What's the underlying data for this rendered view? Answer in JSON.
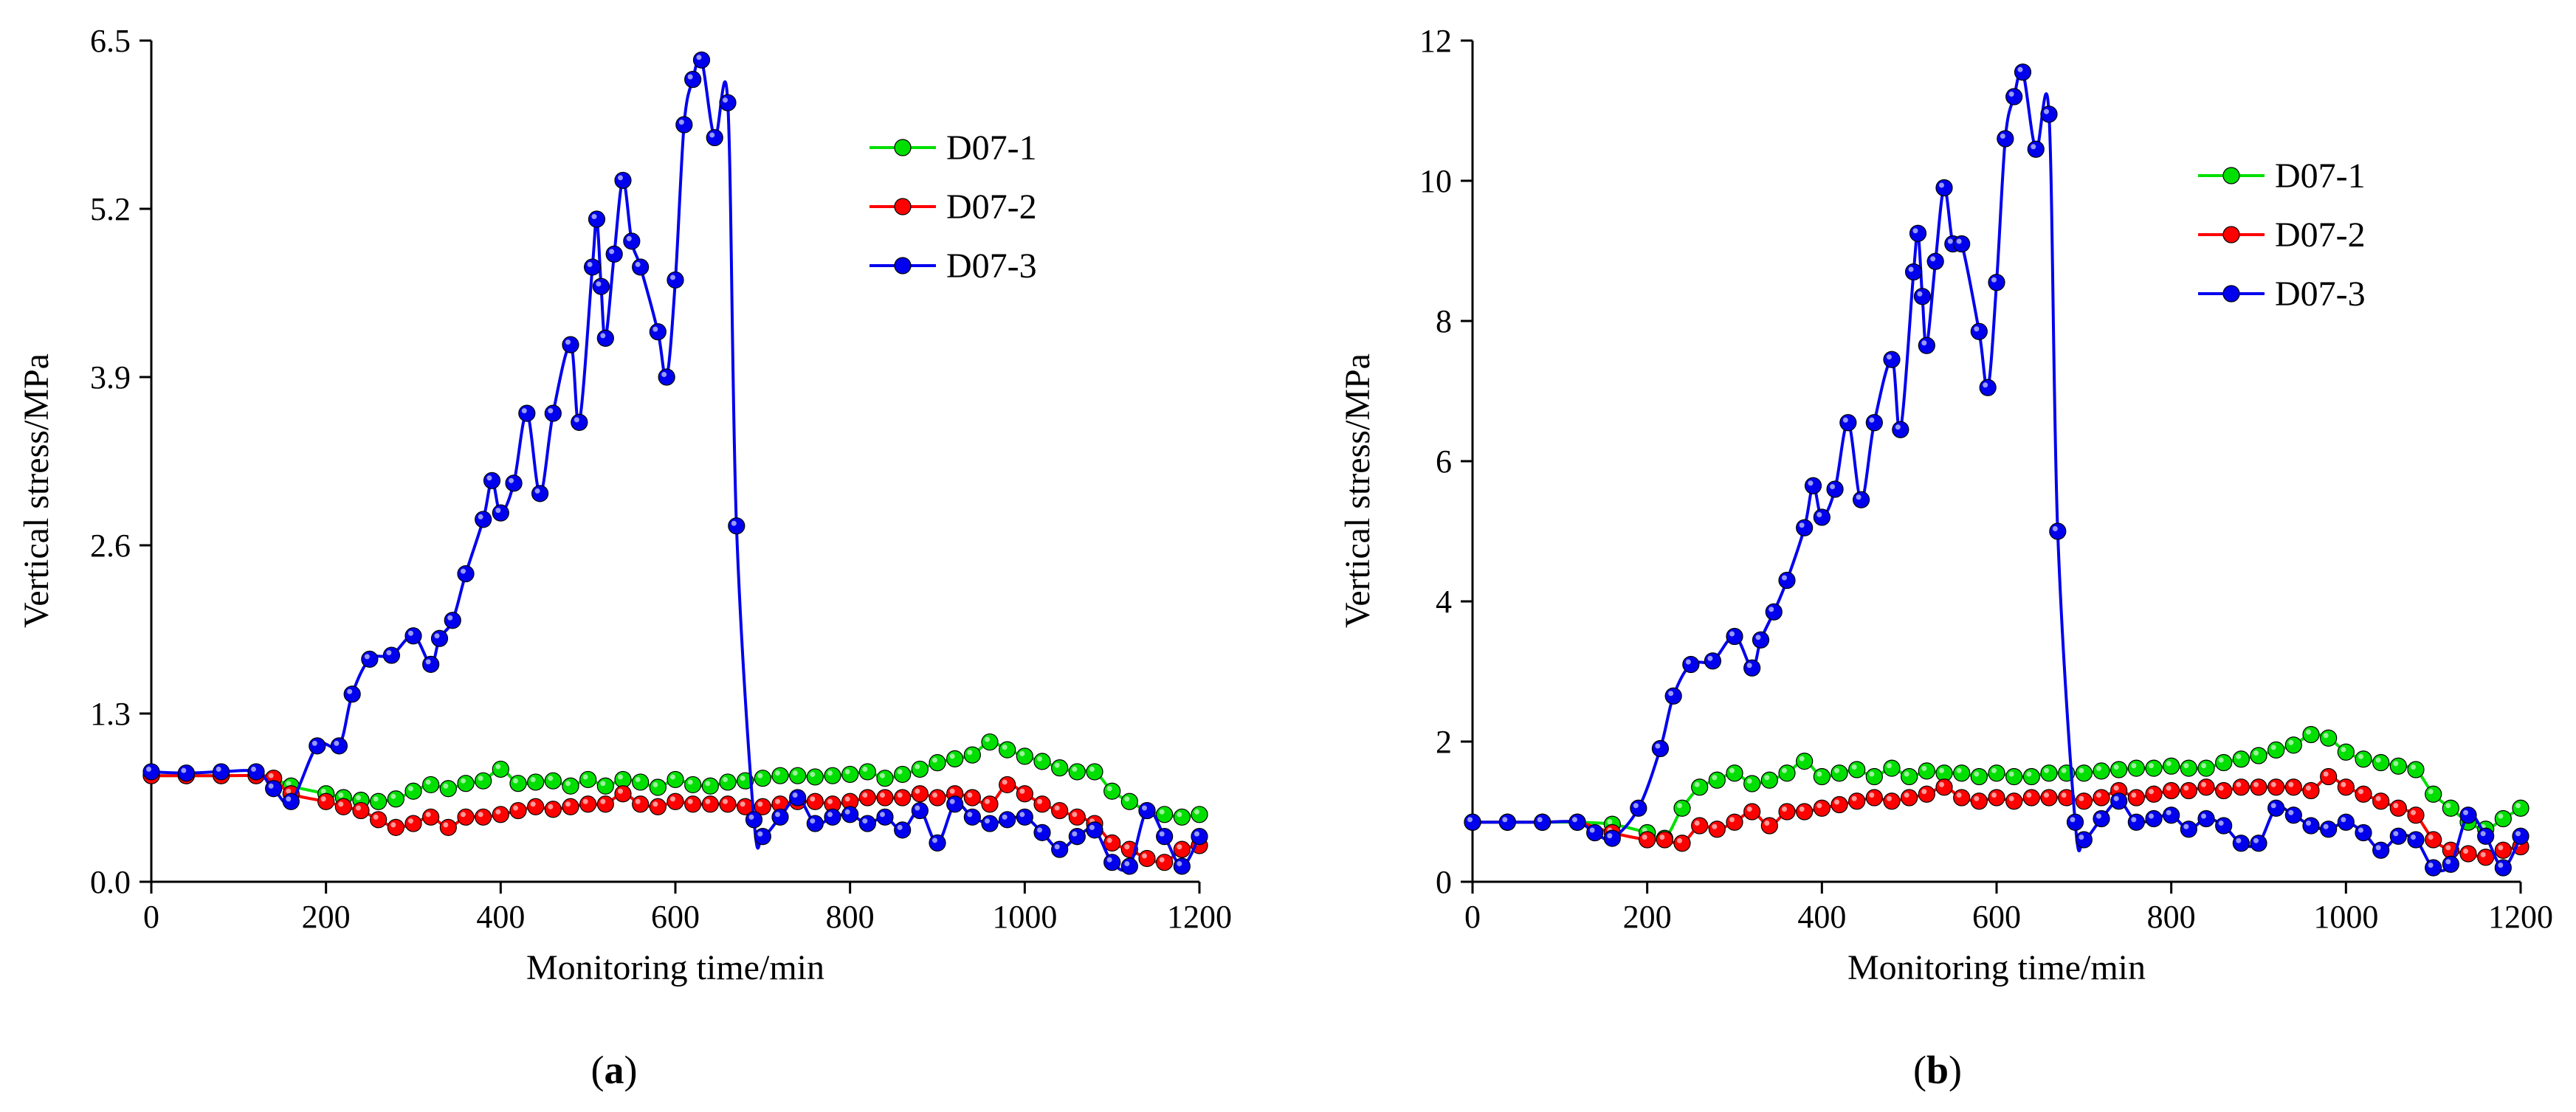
{
  "chart_data": [
    {
      "type": "line",
      "panel_label": "(a)",
      "panel_letter": "a",
      "xlabel": "Monitoring time/min",
      "ylabel": "Vertical stress/MPa",
      "xlim": [
        0,
        1200
      ],
      "ylim": [
        0,
        6.5
      ],
      "xticks": [
        0,
        200,
        400,
        600,
        800,
        1000,
        1200
      ],
      "xtick_labels": [
        "0",
        "200",
        "400",
        "600",
        "800",
        "1000",
        "1200"
      ],
      "yticks": [
        0,
        1.3,
        2.6,
        3.9,
        5.2,
        6.5
      ],
      "ytick_labels": [
        "0.0",
        "1.3",
        "2.6",
        "3.9",
        "5.2",
        "6.5"
      ],
      "legend_position": "top-right",
      "series": [
        {
          "name": "D07-1",
          "color": "#00e000",
          "x": [
            0,
            40,
            80,
            120,
            140,
            160,
            200,
            220,
            240,
            260,
            280,
            300,
            320,
            340,
            360,
            380,
            400,
            420,
            440,
            460,
            480,
            500,
            520,
            540,
            560,
            580,
            600,
            620,
            640,
            660,
            680,
            700,
            720,
            740,
            760,
            780,
            800,
            820,
            840,
            860,
            880,
            900,
            920,
            940,
            960,
            980,
            1000,
            1020,
            1040,
            1060,
            1080,
            1100,
            1120,
            1140,
            1160,
            1180,
            1200
          ],
          "y": [
            0.82,
            0.82,
            0.82,
            0.82,
            0.8,
            0.74,
            0.68,
            0.65,
            0.63,
            0.62,
            0.64,
            0.7,
            0.75,
            0.72,
            0.76,
            0.78,
            0.87,
            0.76,
            0.77,
            0.78,
            0.74,
            0.79,
            0.74,
            0.79,
            0.77,
            0.73,
            0.79,
            0.75,
            0.74,
            0.77,
            0.78,
            0.8,
            0.82,
            0.82,
            0.81,
            0.82,
            0.83,
            0.85,
            0.8,
            0.83,
            0.87,
            0.92,
            0.95,
            0.98,
            1.08,
            1.02,
            0.97,
            0.93,
            0.88,
            0.85,
            0.85,
            0.7,
            0.62,
            0.55,
            0.52,
            0.5,
            0.52
          ]
        },
        {
          "name": "D07-2",
          "color": "#ff0000",
          "x": [
            0,
            40,
            80,
            120,
            140,
            160,
            200,
            220,
            240,
            260,
            280,
            300,
            320,
            340,
            360,
            380,
            400,
            420,
            440,
            460,
            480,
            500,
            520,
            540,
            560,
            580,
            600,
            620,
            640,
            660,
            680,
            700,
            720,
            740,
            760,
            780,
            800,
            820,
            840,
            860,
            880,
            900,
            920,
            940,
            960,
            980,
            1000,
            1020,
            1040,
            1060,
            1080,
            1100,
            1120,
            1140,
            1160,
            1180,
            1200
          ],
          "y": [
            0.82,
            0.82,
            0.82,
            0.82,
            0.8,
            0.68,
            0.62,
            0.58,
            0.55,
            0.48,
            0.42,
            0.45,
            0.5,
            0.42,
            0.5,
            0.5,
            0.52,
            0.55,
            0.58,
            0.56,
            0.58,
            0.6,
            0.6,
            0.68,
            0.6,
            0.58,
            0.62,
            0.6,
            0.6,
            0.6,
            0.58,
            0.58,
            0.6,
            0.62,
            0.62,
            0.6,
            0.62,
            0.65,
            0.65,
            0.65,
            0.68,
            0.65,
            0.68,
            0.65,
            0.6,
            0.75,
            0.68,
            0.6,
            0.55,
            0.5,
            0.45,
            0.3,
            0.25,
            0.18,
            0.15,
            0.25,
            0.28
          ]
        },
        {
          "name": "D07-3",
          "color": "#0000ee",
          "x": [
            0,
            40,
            80,
            120,
            140,
            160,
            190,
            215,
            230,
            250,
            275,
            300,
            320,
            330,
            345,
            360,
            380,
            390,
            400,
            415,
            430,
            445,
            460,
            480,
            490,
            505,
            510,
            515,
            520,
            530,
            540,
            550,
            560,
            580,
            590,
            600,
            610,
            620,
            630,
            645,
            660,
            670,
            690,
            700,
            720,
            740,
            760,
            780,
            800,
            820,
            840,
            860,
            880,
            900,
            920,
            940,
            960,
            980,
            1000,
            1020,
            1040,
            1060,
            1080,
            1100,
            1120,
            1140,
            1160,
            1180,
            1200
          ],
          "y": [
            0.85,
            0.84,
            0.85,
            0.85,
            0.72,
            0.62,
            1.05,
            1.05,
            1.45,
            1.72,
            1.75,
            1.9,
            1.68,
            1.88,
            2.02,
            2.38,
            2.8,
            3.1,
            2.85,
            3.08,
            3.62,
            3.0,
            3.62,
            4.15,
            3.55,
            4.75,
            5.12,
            4.6,
            4.2,
            4.85,
            5.42,
            4.95,
            4.75,
            4.25,
            3.9,
            4.65,
            5.85,
            6.2,
            6.35,
            5.75,
            6.02,
            2.75,
            0.48,
            0.35,
            0.5,
            0.65,
            0.45,
            0.5,
            0.52,
            0.45,
            0.5,
            0.4,
            0.55,
            0.3,
            0.6,
            0.5,
            0.45,
            0.48,
            0.5,
            0.38,
            0.25,
            0.35,
            0.4,
            0.15,
            0.12,
            0.55,
            0.35,
            0.12,
            0.35
          ]
        }
      ]
    },
    {
      "type": "line",
      "panel_label": "(b)",
      "panel_letter": "b",
      "xlabel": "Monitoring time/min",
      "ylabel": "Vertical stress/MPa",
      "xlim": [
        0,
        1200
      ],
      "ylim": [
        0,
        12
      ],
      "xticks": [
        0,
        200,
        400,
        600,
        800,
        1000,
        1200
      ],
      "xtick_labels": [
        "0",
        "200",
        "400",
        "600",
        "800",
        "1000",
        "1200"
      ],
      "yticks": [
        0,
        2,
        4,
        6,
        8,
        10,
        12
      ],
      "ytick_labels": [
        "0",
        "2",
        "4",
        "6",
        "8",
        "10",
        "12"
      ],
      "legend_position": "top-right",
      "series": [
        {
          "name": "D07-1",
          "color": "#00e000",
          "x": [
            0,
            40,
            80,
            120,
            160,
            200,
            220,
            240,
            260,
            280,
            300,
            320,
            340,
            360,
            380,
            400,
            420,
            440,
            460,
            480,
            500,
            520,
            540,
            560,
            580,
            600,
            620,
            640,
            660,
            680,
            700,
            720,
            740,
            760,
            780,
            800,
            820,
            840,
            860,
            880,
            900,
            920,
            940,
            960,
            980,
            1000,
            1020,
            1040,
            1060,
            1080,
            1100,
            1120,
            1140,
            1160,
            1180,
            1200
          ],
          "y": [
            0.85,
            0.85,
            0.85,
            0.85,
            0.82,
            0.7,
            0.62,
            1.05,
            1.35,
            1.45,
            1.55,
            1.4,
            1.45,
            1.55,
            1.72,
            1.5,
            1.55,
            1.6,
            1.5,
            1.62,
            1.5,
            1.58,
            1.55,
            1.55,
            1.5,
            1.55,
            1.5,
            1.5,
            1.55,
            1.55,
            1.55,
            1.58,
            1.6,
            1.62,
            1.62,
            1.65,
            1.62,
            1.62,
            1.7,
            1.75,
            1.8,
            1.88,
            1.95,
            2.1,
            2.05,
            1.85,
            1.75,
            1.7,
            1.65,
            1.6,
            1.25,
            1.05,
            0.85,
            0.75,
            0.9,
            1.05
          ]
        },
        {
          "name": "D07-2",
          "color": "#ff0000",
          "x": [
            0,
            40,
            80,
            120,
            160,
            200,
            220,
            240,
            260,
            280,
            300,
            320,
            340,
            360,
            380,
            400,
            420,
            440,
            460,
            480,
            500,
            520,
            540,
            560,
            580,
            600,
            620,
            640,
            660,
            680,
            700,
            720,
            740,
            760,
            780,
            800,
            820,
            840,
            860,
            880,
            900,
            920,
            940,
            960,
            980,
            1000,
            1020,
            1040,
            1060,
            1080,
            1100,
            1120,
            1140,
            1160,
            1180,
            1200
          ],
          "y": [
            0.85,
            0.85,
            0.85,
            0.85,
            0.7,
            0.6,
            0.6,
            0.55,
            0.8,
            0.75,
            0.85,
            1.0,
            0.8,
            1.0,
            1.0,
            1.05,
            1.1,
            1.15,
            1.2,
            1.15,
            1.2,
            1.25,
            1.35,
            1.2,
            1.15,
            1.2,
            1.15,
            1.2,
            1.2,
            1.2,
            1.15,
            1.2,
            1.3,
            1.2,
            1.25,
            1.3,
            1.3,
            1.35,
            1.3,
            1.35,
            1.35,
            1.35,
            1.35,
            1.3,
            1.5,
            1.35,
            1.25,
            1.15,
            1.05,
            0.95,
            0.6,
            0.45,
            0.4,
            0.35,
            0.45,
            0.5
          ]
        },
        {
          "name": "D07-3",
          "color": "#0000ee",
          "x": [
            0,
            40,
            80,
            120,
            140,
            160,
            190,
            215,
            230,
            250,
            275,
            300,
            320,
            330,
            345,
            360,
            380,
            390,
            400,
            415,
            430,
            445,
            460,
            480,
            490,
            505,
            510,
            515,
            520,
            530,
            540,
            550,
            560,
            580,
            590,
            600,
            610,
            620,
            630,
            645,
            660,
            670,
            690,
            700,
            720,
            740,
            760,
            780,
            800,
            820,
            840,
            860,
            880,
            900,
            920,
            940,
            960,
            980,
            1000,
            1020,
            1040,
            1060,
            1080,
            1100,
            1120,
            1140,
            1160,
            1180,
            1200
          ],
          "y": [
            0.85,
            0.85,
            0.85,
            0.85,
            0.7,
            0.62,
            1.05,
            1.9,
            2.65,
            3.1,
            3.15,
            3.5,
            3.05,
            3.45,
            3.85,
            4.3,
            5.05,
            5.65,
            5.2,
            5.6,
            6.55,
            5.45,
            6.55,
            7.45,
            6.45,
            8.7,
            9.25,
            8.35,
            7.65,
            8.85,
            9.9,
            9.1,
            9.1,
            7.85,
            7.05,
            8.55,
            10.6,
            11.2,
            11.55,
            10.45,
            10.95,
            5.0,
            0.85,
            0.6,
            0.9,
            1.15,
            0.85,
            0.9,
            0.95,
            0.75,
            0.9,
            0.8,
            0.55,
            0.55,
            1.05,
            0.95,
            0.8,
            0.75,
            0.85,
            0.7,
            0.45,
            0.65,
            0.6,
            0.2,
            0.25,
            0.95,
            0.65,
            0.2,
            0.65
          ]
        }
      ]
    }
  ]
}
